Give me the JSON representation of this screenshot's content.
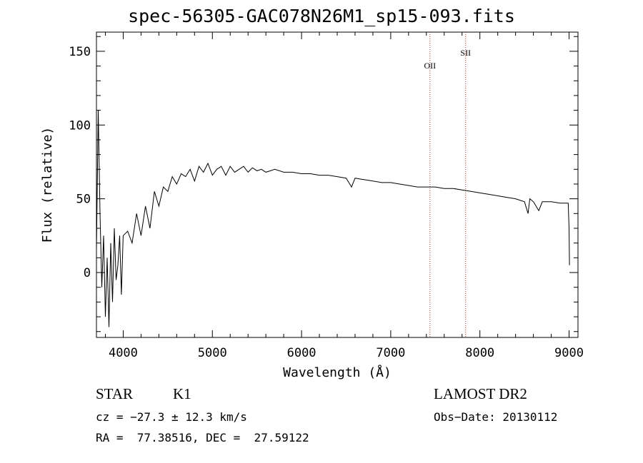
{
  "title": "spec-56305-GAC078N26M1_sp15-093.fits",
  "info": {
    "class_label": "STAR",
    "subclass_label": "K1",
    "survey": "LAMOST DR2",
    "cz": "cz = −27.3 ± 12.3 km/s",
    "obs_date": "Obs−Date: 20130112",
    "coords": "RA =  77.38516, DEC =  27.59122"
  },
  "chart_data": {
    "type": "line",
    "title": "spec-56305-GAC078N26M1_sp15-093.fits",
    "xlabel": "Wavelength (Å)",
    "ylabel": "Flux (relative)",
    "xlim": [
      3700,
      9100
    ],
    "ylim": [
      -44,
      163
    ],
    "xticks": [
      4000,
      5000,
      6000,
      7000,
      8000,
      9000
    ],
    "yticks": [
      0,
      50,
      100,
      150
    ],
    "grid": false,
    "series": [
      {
        "color": "#000000",
        "x": [
          3700,
          3720,
          3740,
          3760,
          3780,
          3800,
          3820,
          3840,
          3860,
          3880,
          3900,
          3920,
          3940,
          3960,
          3980,
          4000,
          4050,
          4100,
          4150,
          4200,
          4250,
          4300,
          4350,
          4400,
          4450,
          4500,
          4550,
          4600,
          4650,
          4700,
          4750,
          4800,
          4850,
          4900,
          4950,
          5000,
          5050,
          5100,
          5150,
          5200,
          5250,
          5300,
          5350,
          5400,
          5450,
          5500,
          5550,
          5600,
          5650,
          5700,
          5800,
          5900,
          6000,
          6100,
          6200,
          6300,
          6400,
          6500,
          6560,
          6600,
          6700,
          6800,
          6900,
          7000,
          7100,
          7200,
          7300,
          7400,
          7500,
          7600,
          7700,
          7800,
          7900,
          8000,
          8100,
          8200,
          8300,
          8400,
          8500,
          8540,
          8560,
          8600,
          8660,
          8700,
          8800,
          8900,
          8990,
          9000,
          9005
        ],
        "values": [
          15,
          110,
          40,
          -10,
          25,
          -30,
          10,
          -37,
          20,
          -20,
          30,
          -5,
          5,
          25,
          -15,
          25,
          28,
          20,
          40,
          25,
          45,
          30,
          55,
          45,
          58,
          55,
          65,
          60,
          67,
          65,
          70,
          62,
          72,
          68,
          74,
          66,
          70,
          72,
          66,
          72,
          68,
          70,
          72,
          68,
          71,
          69,
          70,
          68,
          69,
          70,
          68,
          68,
          67,
          67,
          66,
          66,
          65,
          64,
          58,
          64,
          63,
          62,
          61,
          61,
          60,
          59,
          58,
          58,
          58,
          57,
          57,
          56,
          55,
          54,
          53,
          52,
          51,
          50,
          48,
          40,
          50,
          48,
          42,
          48,
          48,
          47,
          47,
          30,
          5
        ]
      }
    ],
    "lines": [
      {
        "label": "OII",
        "x": 7440
      },
      {
        "label": "SII",
        "x": 7840
      }
    ]
  }
}
